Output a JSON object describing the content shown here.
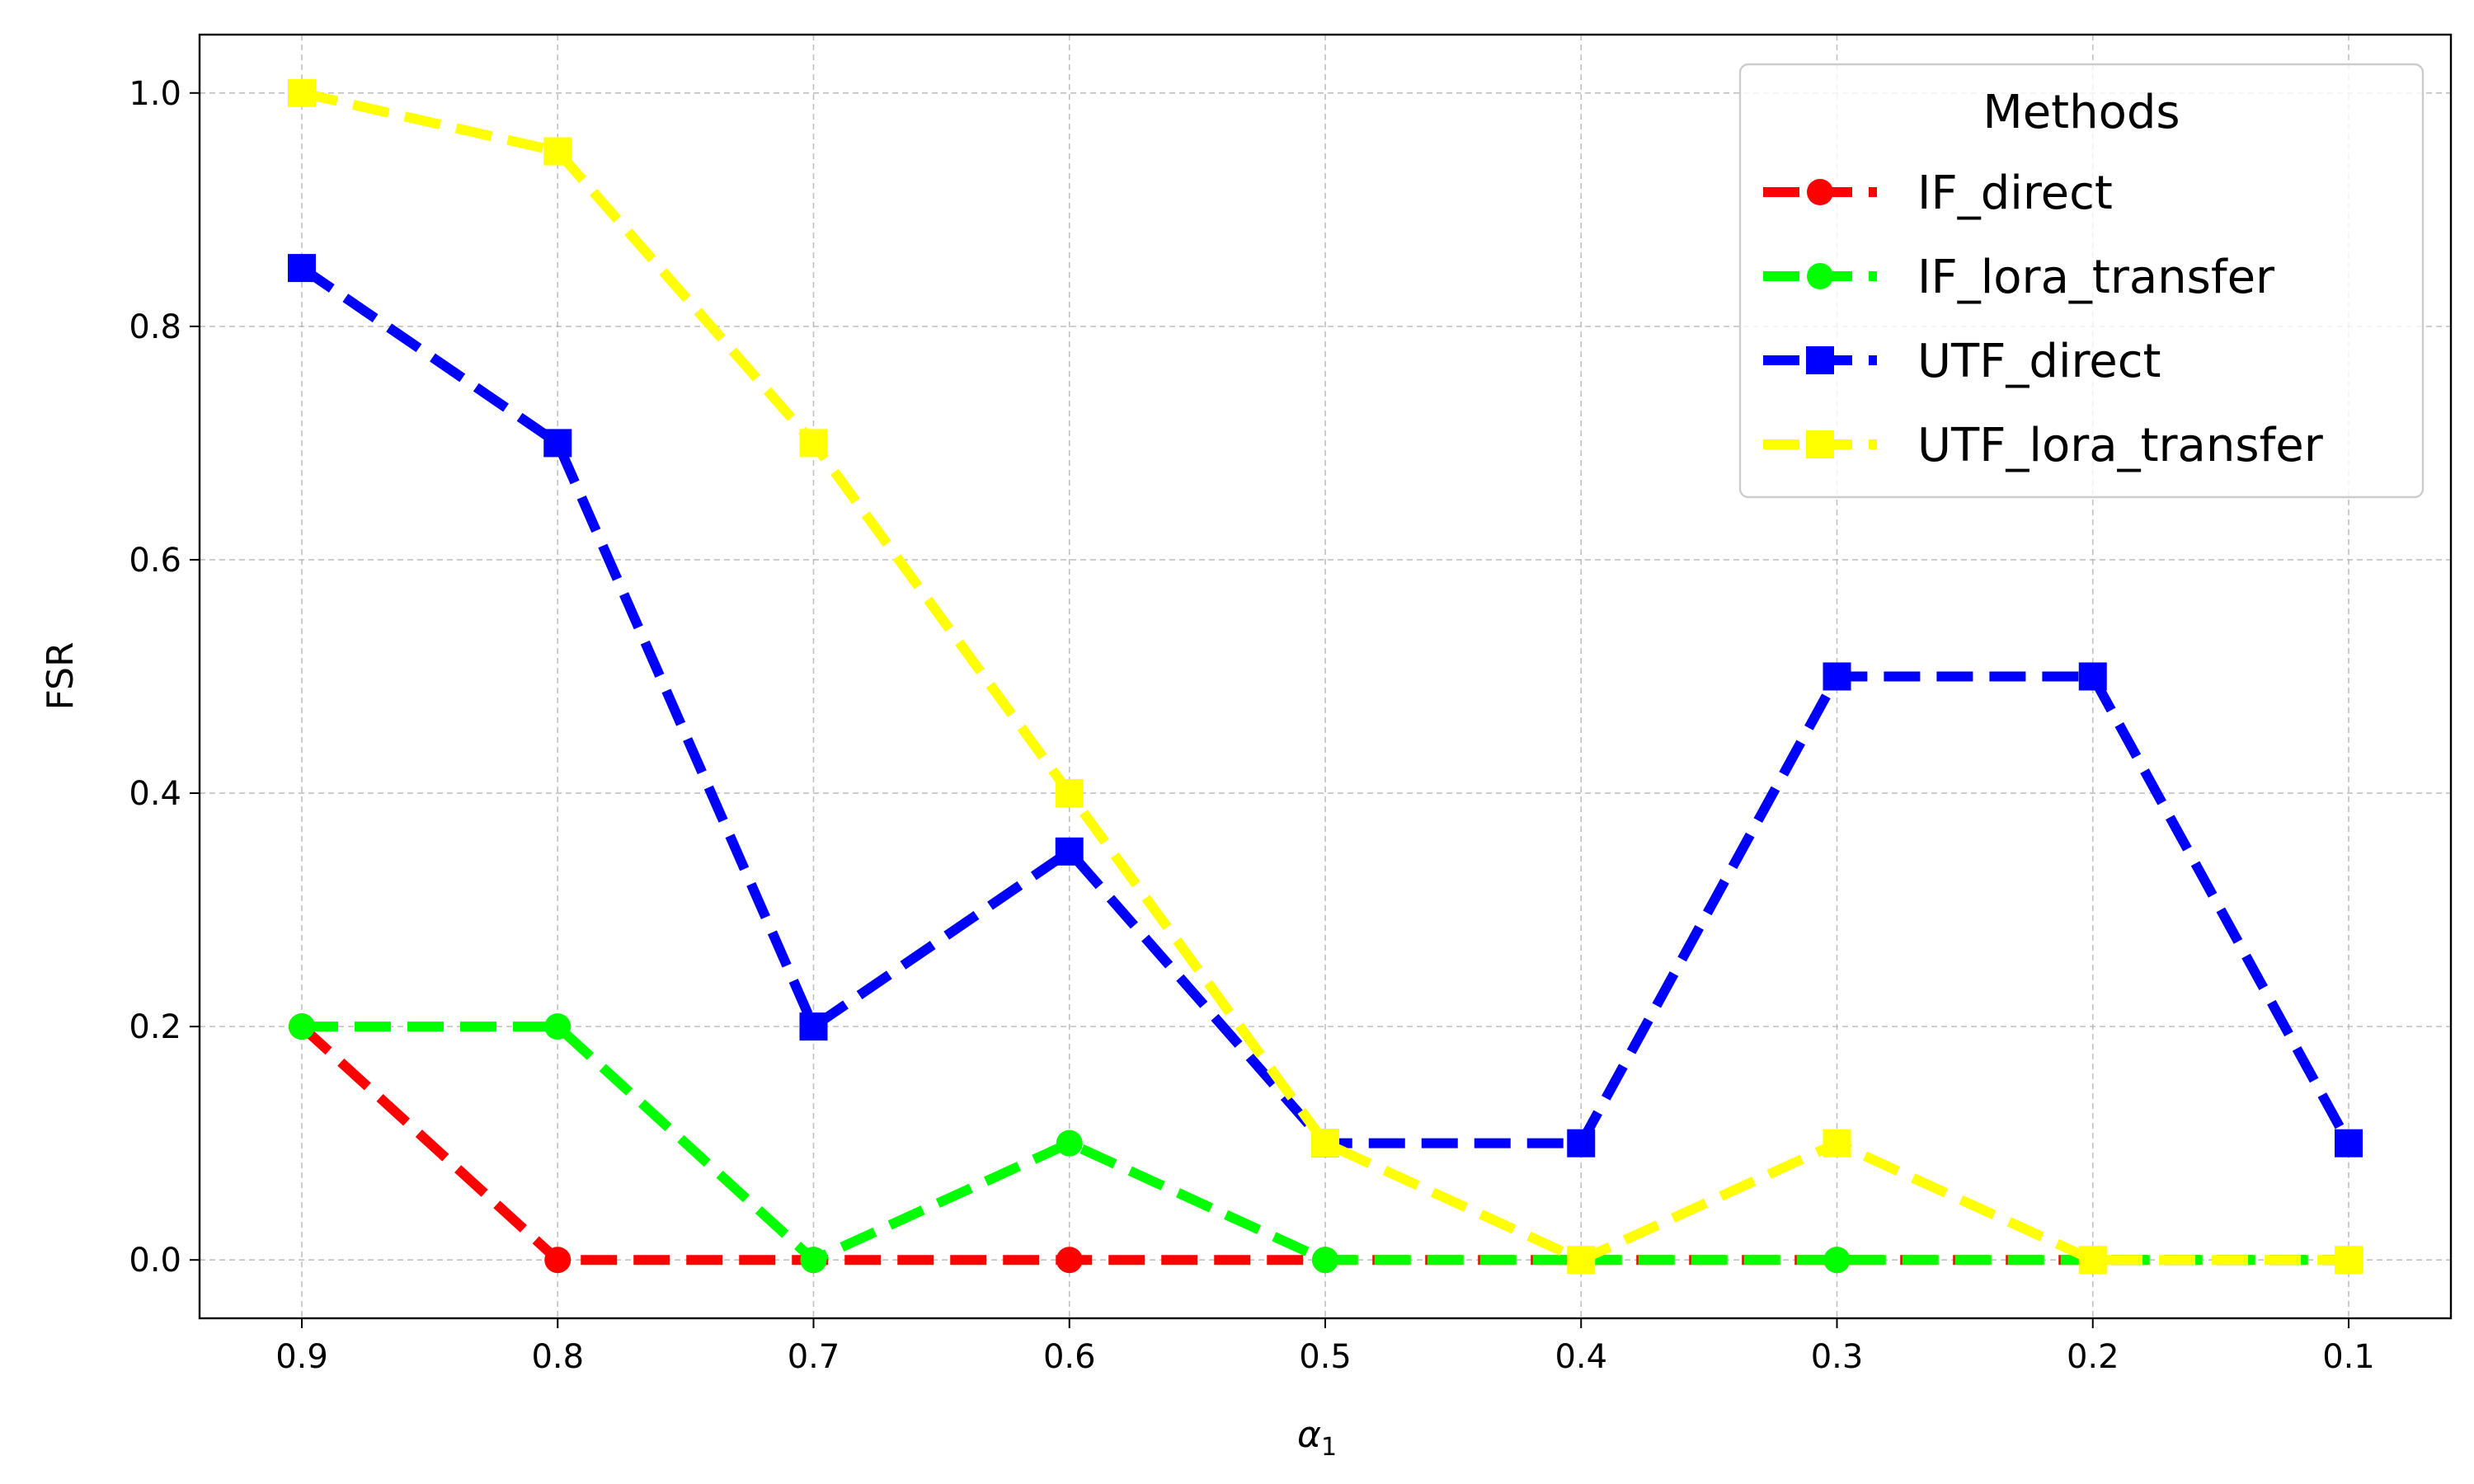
{
  "chart_data": {
    "type": "line",
    "xlabel": "α",
    "xlabel_sub": "1",
    "ylabel": "FSR",
    "x": [
      0.9,
      0.8,
      0.7,
      0.6,
      0.5,
      0.4,
      0.3,
      0.2,
      0.1
    ],
    "x_tick_labels": [
      "0.9",
      "0.8",
      "0.7",
      "0.6",
      "0.5",
      "0.4",
      "0.3",
      "0.2",
      "0.1"
    ],
    "x_axis_reversed": true,
    "y_ticks": [
      0.0,
      0.2,
      0.4,
      0.6,
      0.8,
      1.0
    ],
    "y_tick_labels": [
      "0.0",
      "0.2",
      "0.4",
      "0.6",
      "0.8",
      "1.0"
    ],
    "ylim": [
      -0.05,
      1.05
    ],
    "grid": true,
    "legend": {
      "title": "Methods",
      "placement": "top-right"
    },
    "series": [
      {
        "name": "IF_direct",
        "color": "#ff0000",
        "marker": "circle",
        "values": [
          0.2,
          0.0,
          0.0,
          0.0,
          0.0,
          0.0,
          0.0,
          0.0,
          0.0
        ]
      },
      {
        "name": "IF_lora_transfer",
        "color": "#00ff00",
        "marker": "circle",
        "values": [
          0.2,
          0.2,
          0.0,
          0.1,
          0.0,
          0.0,
          0.0,
          0.0,
          0.0
        ]
      },
      {
        "name": "UTF_direct",
        "color": "#0000ff",
        "marker": "square",
        "values": [
          0.85,
          0.7,
          0.2,
          0.35,
          0.1,
          0.1,
          0.5,
          0.5,
          0.1
        ]
      },
      {
        "name": "UTF_lora_transfer",
        "color": "#ffff00",
        "marker": "square",
        "values": [
          1.0,
          0.95,
          0.7,
          0.4,
          0.1,
          0.0,
          0.1,
          0.0,
          0.0
        ]
      }
    ]
  }
}
